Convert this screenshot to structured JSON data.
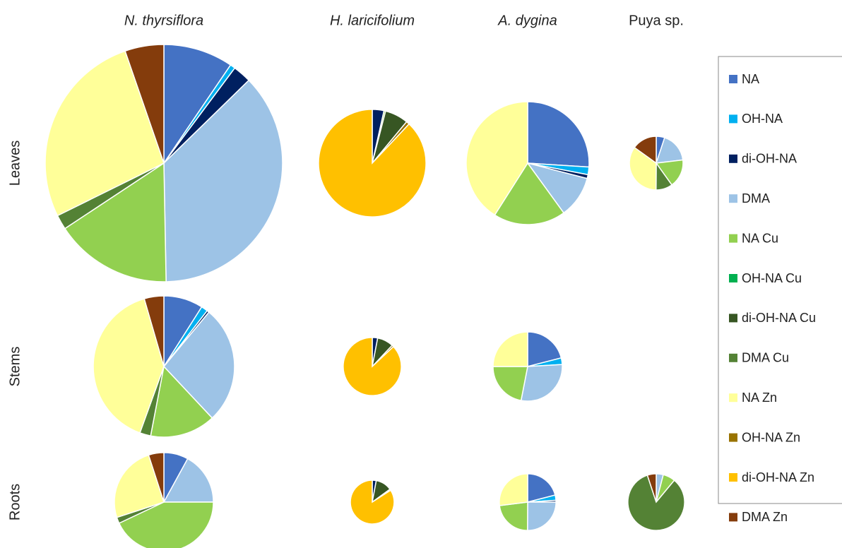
{
  "chart_data": {
    "type": "pie-grid",
    "columns": [
      "N. thyrsiflora",
      "H. laricifolium",
      "A. dygina",
      "Puya sp."
    ],
    "rows": [
      "Leaves",
      "Stems",
      "Roots"
    ],
    "series": [
      {
        "name": "NA",
        "color": "#4472c4"
      },
      {
        "name": "OH-NA",
        "color": "#00b0f0"
      },
      {
        "name": "di-OH-NA",
        "color": "#002060"
      },
      {
        "name": "DMA",
        "color": "#9dc3e6"
      },
      {
        "name": "NA Cu",
        "color": "#92d050"
      },
      {
        "name": "OH-NA Cu",
        "color": "#00b050"
      },
      {
        "name": "di-OH-NA Cu",
        "color": "#375623"
      },
      {
        "name": "DMA Cu",
        "color": "#548235"
      },
      {
        "name": "NA Zn",
        "color": "#ffff99"
      },
      {
        "name": "OH-NA Zn",
        "color": "#997300"
      },
      {
        "name": "di-OH-NA Zn",
        "color": "#ffc000"
      },
      {
        "name": "DMA Zn",
        "color": "#843c0c"
      }
    ],
    "cells": [
      [
        [
          9.5,
          0.7,
          2.5,
          37,
          16,
          0,
          0,
          2,
          27,
          0,
          0,
          5.3
        ],
        [
          0,
          0,
          0.72,
          0,
          0.1,
          0,
          1.44,
          0,
          0,
          0.2,
          18.04,
          0
        ],
        [
          6.97,
          0.54,
          0.27,
          2.95,
          5.09,
          0,
          0,
          0,
          10.99,
          0,
          0,
          0
        ],
        [
          0.26,
          0,
          0,
          0.92,
          0.87,
          0,
          0,
          0.51,
          1.78,
          0,
          0,
          0.77
        ]
      ],
      [
        [
          3.19,
          0.53,
          0.18,
          9.56,
          5.31,
          0,
          0,
          0.89,
          14.16,
          0,
          0,
          1.59
        ],
        [
          0,
          0,
          0.18,
          0,
          0,
          0,
          0.54,
          0,
          0,
          0.06,
          5.22,
          0
        ],
        [
          1.79,
          0.26,
          0,
          2.47,
          1.87,
          0,
          0,
          0,
          2.13,
          0,
          0,
          0
        ],
        null
      ],
      [
        [
          1.39,
          0,
          0,
          2.96,
          7.48,
          0,
          0,
          0.35,
          4.35,
          0,
          0,
          0.87
        ],
        [
          0,
          0,
          0.1,
          0,
          0,
          0,
          0.41,
          0,
          0,
          0.03,
          2.86,
          0
        ],
        [
          1.2,
          0.17,
          0.06,
          1.43,
          1.31,
          0,
          0,
          0,
          1.54,
          0,
          0,
          0
        ],
        [
          0,
          0,
          0,
          0.23,
          0.4,
          0,
          0,
          4.79,
          0,
          0,
          0,
          0.29
        ]
      ]
    ]
  }
}
